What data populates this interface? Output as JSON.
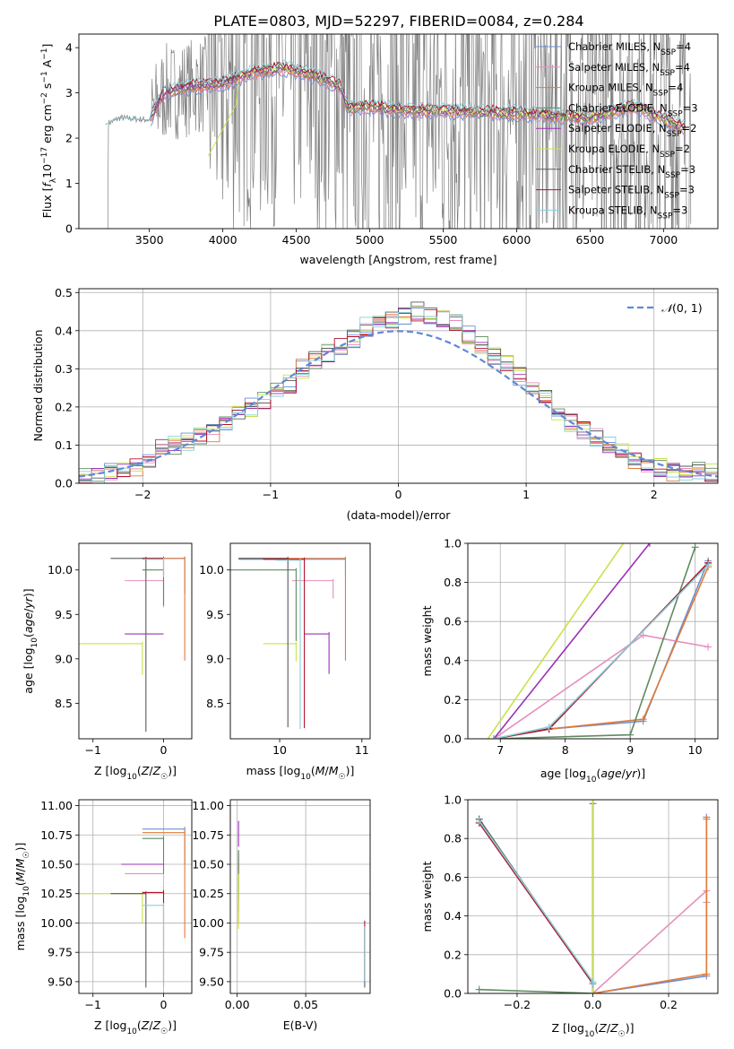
{
  "figure_title": "PLATE=0803, MJD=52297, FIBERID=0084, z=0.284",
  "series_colors": [
    "#6a8fd8",
    "#e58fbd",
    "#e07b39",
    "#5f8a60",
    "#9b32b5",
    "#c8e34a",
    "#5a5a5a",
    "#b3122a",
    "#86d0d8"
  ],
  "data_color": "#808080",
  "chart_data": [
    {
      "id": "spectrum",
      "type": "line",
      "xlabel": "wavelength [Angstrom, rest frame]",
      "ylabel": "Flux [f_λ 10^-17 erg cm^-2 s^-1 A^-1]",
      "xlim": [
        3020,
        7370
      ],
      "ylim": [
        0,
        4.3
      ],
      "xticks": [
        3500,
        4000,
        4500,
        5000,
        5500,
        6000,
        6500,
        7000
      ],
      "yticks": [
        0,
        1,
        2,
        3,
        4
      ],
      "grid": false,
      "legend_position": "top-right",
      "legend": [
        "Chabrier MILES, N_SSP=4",
        "Salpeter MILES, N_SSP=4",
        "Kroupa MILES, N_SSP=4",
        "Chabrier ELODIE, N_SSP=3",
        "Salpeter ELODIE, N_SSP=2",
        "Kroupa ELODIE, N_SSP=2",
        "Chabrier STELIB, N_SSP=3",
        "Salpeter STELIB, N_SSP=3",
        "Kroupa STELIB, N_SSP=3"
      ],
      "data_range": [
        3190,
        7190
      ],
      "model_continuum": {
        "x": [
          3200,
          3300,
          3500,
          3600,
          3800,
          4000,
          4200,
          4400,
          4600,
          4800,
          4850,
          5000,
          5200,
          5500,
          6000,
          6500,
          6800,
          7150
        ],
        "y": [
          2.3,
          2.45,
          2.4,
          3.0,
          3.15,
          3.2,
          3.45,
          3.55,
          3.4,
          3.15,
          2.65,
          2.7,
          2.62,
          2.6,
          2.55,
          2.45,
          2.7,
          2.2
        ]
      }
    },
    {
      "id": "residuals",
      "type": "line",
      "xlabel": "(data-model)/error",
      "ylabel": "Normed distribution",
      "xlim": [
        -2.5,
        2.5
      ],
      "ylim": [
        0,
        0.51
      ],
      "xticks": [
        -2,
        -1,
        0,
        1,
        2
      ],
      "yticks": [
        0.0,
        0.1,
        0.2,
        0.3,
        0.4,
        0.5
      ],
      "grid": true,
      "legend_position": "top-right",
      "legend": [
        "N(0,1)"
      ],
      "bin_width": 0.1,
      "hist_base": [
        0.02,
        0.02,
        0.03,
        0.03,
        0.04,
        0.06,
        0.09,
        0.1,
        0.11,
        0.12,
        0.13,
        0.16,
        0.18,
        0.2,
        0.22,
        0.24,
        0.26,
        0.3,
        0.32,
        0.34,
        0.36,
        0.38,
        0.41,
        0.42,
        0.43,
        0.44,
        0.45,
        0.44,
        0.43,
        0.42,
        0.39,
        0.36,
        0.33,
        0.31,
        0.28,
        0.25,
        0.22,
        0.19,
        0.16,
        0.14,
        0.12,
        0.1,
        0.08,
        0.06,
        0.05,
        0.04,
        0.03,
        0.03,
        0.03,
        0.03
      ]
    },
    {
      "id": "age_vs_Z",
      "type": "scatter",
      "xlabel": "Z [log10(Z/Z☉)]",
      "ylabel": "age [log10(age/yr)]",
      "xlim": [
        -1.2,
        0.4
      ],
      "ylim": [
        8.1,
        10.3
      ],
      "xticks": [
        -1,
        0
      ],
      "yticks": [
        8.5,
        9.0,
        9.5,
        10.0
      ],
      "grid": false,
      "points": [
        {
          "s": 0,
          "x": 0.3,
          "y": 10.13,
          "xerr": 0.6,
          "yerr": 0.4
        },
        {
          "s": 1,
          "x": 0.0,
          "y": 9.88,
          "xerr": 0.55,
          "yerr": 0.3
        },
        {
          "s": 2,
          "x": 0.3,
          "y": 10.13,
          "xerr": 0.6,
          "yerr": 1.15
        },
        {
          "s": 3,
          "x": 0.0,
          "y": 10.0,
          "xerr": 0.3,
          "yerr": 0.4
        },
        {
          "s": 4,
          "x": 0.0,
          "y": 9.28,
          "xerr": 0.55,
          "yerr": 0.0
        },
        {
          "s": 5,
          "x": -0.3,
          "y": 9.17,
          "xerr": 1.2,
          "yerr": 0.35
        },
        {
          "s": 6,
          "x": -0.25,
          "y": 10.13,
          "xerr": 0.5,
          "yerr": 1.95
        },
        {
          "s": 7,
          "x": 0.0,
          "y": 10.13,
          "xerr": 0.3,
          "yerr": 0.2
        },
        {
          "s": 8,
          "x": 0.0,
          "y": 10.12,
          "xerr": 0.3,
          "yerr": 0.2
        }
      ]
    },
    {
      "id": "age_vs_mass",
      "type": "scatter",
      "xlabel": "mass [log10(M/M☉)]",
      "ylabel": "",
      "xlim": [
        9.4,
        11.1
      ],
      "ylim": [
        8.1,
        10.3
      ],
      "xticks": [
        10,
        11
      ],
      "yticks": [
        8.5,
        9.0,
        9.5,
        10.0
      ],
      "grid": false,
      "points": [
        {
          "s": 0,
          "x": 10.8,
          "y": 10.12,
          "xerr": 1.3,
          "yerr": 0.2
        },
        {
          "s": 1,
          "x": 10.65,
          "y": 9.88,
          "xerr": 0.5,
          "yerr": 0.2
        },
        {
          "s": 2,
          "x": 10.8,
          "y": 10.13,
          "xerr": 1.3,
          "yerr": 1.15
        },
        {
          "s": 3,
          "x": 10.2,
          "y": 10.0,
          "xerr": 1.0,
          "yerr": 0.8
        },
        {
          "s": 4,
          "x": 10.6,
          "y": 9.28,
          "xerr": 0.3,
          "yerr": 0.45
        },
        {
          "s": 5,
          "x": 10.2,
          "y": 9.17,
          "xerr": 0.4,
          "yerr": 0.2
        },
        {
          "s": 6,
          "x": 10.1,
          "y": 10.13,
          "xerr": 0.6,
          "yerr": 1.9
        },
        {
          "s": 7,
          "x": 10.3,
          "y": 10.12,
          "xerr": 0.5,
          "yerr": 1.9
        },
        {
          "s": 8,
          "x": 10.25,
          "y": 10.11,
          "xerr": 0.3,
          "yerr": 1.9
        }
      ]
    },
    {
      "id": "weight_vs_age",
      "type": "line",
      "xlabel": "age [log10(age/yr)]",
      "ylabel": "mass weight",
      "xlim": [
        6.5,
        10.35
      ],
      "ylim": [
        0,
        1.0
      ],
      "xticks": [
        7,
        8,
        9,
        10
      ],
      "yticks": [
        0.0,
        0.2,
        0.4,
        0.6,
        0.8,
        1.0
      ],
      "grid": true,
      "series": [
        {
          "s": 0,
          "x": [
            6.9,
            7.75,
            9.2,
            10.2
          ],
          "y": [
            0.0,
            0.05,
            0.09,
            0.91
          ]
        },
        {
          "s": 1,
          "x": [
            6.9,
            9.2,
            10.2
          ],
          "y": [
            0.0,
            0.53,
            0.47
          ]
        },
        {
          "s": 2,
          "x": [
            6.9,
            7.75,
            9.2,
            10.2
          ],
          "y": [
            0.0,
            0.05,
            0.1,
            0.88
          ]
        },
        {
          "s": 3,
          "x": [
            6.9,
            9.0,
            10.0
          ],
          "y": [
            0.0,
            0.02,
            0.98
          ]
        },
        {
          "s": 4,
          "x": [
            6.9,
            9.3
          ],
          "y": [
            0.0,
            1.0
          ]
        },
        {
          "s": 5,
          "x": [
            6.6,
            9.0
          ],
          "y": [
            -0.1,
            1.05
          ]
        },
        {
          "s": 6,
          "x": [
            6.9,
            7.75,
            10.2
          ],
          "y": [
            0.0,
            0.05,
            0.9
          ]
        },
        {
          "s": 7,
          "x": [
            6.9,
            7.75,
            10.2
          ],
          "y": [
            0.0,
            0.05,
            0.9
          ]
        },
        {
          "s": 8,
          "x": [
            6.9,
            7.75,
            10.2
          ],
          "y": [
            0.0,
            0.06,
            0.89
          ]
        }
      ]
    },
    {
      "id": "mass_vs_Z",
      "type": "scatter",
      "xlabel": "Z [log10(Z/Z☉)]",
      "ylabel": "mass [log10(M/M☉)]",
      "xlim": [
        -1.2,
        0.4
      ],
      "ylim": [
        9.4,
        11.05
      ],
      "xticks": [
        -1,
        0
      ],
      "yticks": [
        9.5,
        9.75,
        10.0,
        10.25,
        10.5,
        10.75,
        11.0
      ],
      "grid": true,
      "points": [
        {
          "s": 0,
          "x": 0.3,
          "y": 10.8,
          "xerr": 0.6,
          "yerr": 0.3
        },
        {
          "s": 1,
          "x": 0.0,
          "y": 10.42,
          "xerr": 0.55,
          "yerr": 0.0
        },
        {
          "s": 2,
          "x": 0.3,
          "y": 10.77,
          "xerr": 0.6,
          "yerr": 0.9
        },
        {
          "s": 3,
          "x": 0.0,
          "y": 10.72,
          "xerr": 0.3,
          "yerr": 0.3
        },
        {
          "s": 4,
          "x": 0.0,
          "y": 10.5,
          "xerr": 0.6,
          "yerr": 0.0
        },
        {
          "s": 5,
          "x": -0.3,
          "y": 10.25,
          "xerr": 1.2,
          "yerr": 0.25
        },
        {
          "s": 6,
          "x": -0.25,
          "y": 10.25,
          "xerr": 0.5,
          "yerr": 0.8
        },
        {
          "s": 7,
          "x": 0.0,
          "y": 10.26,
          "xerr": 0.3,
          "yerr": 0.8
        },
        {
          "s": 8,
          "x": 0.0,
          "y": 10.15,
          "xerr": 0.3,
          "yerr": 0.7
        }
      ]
    },
    {
      "id": "mass_vs_ebv",
      "type": "scatter",
      "xlabel": "E(B-V)",
      "ylabel": "",
      "xlim": [
        -0.005,
        0.097
      ],
      "ylim": [
        9.4,
        11.05
      ],
      "xticks": [
        0.0,
        0.05
      ],
      "yticks": [
        9.5,
        9.75,
        10.0,
        10.25,
        10.5,
        10.75,
        11.0
      ],
      "grid": true,
      "points": [
        {
          "s": 0,
          "x": 0.001,
          "y": 10.55,
          "xerr": 0,
          "yerr": 0.45
        },
        {
          "s": 1,
          "x": 0.001,
          "y": 10.6,
          "xerr": 0,
          "yerr": 0.45
        },
        {
          "s": 2,
          "x": 0.001,
          "y": 10.5,
          "xerr": 0,
          "yerr": 0.5
        },
        {
          "s": 3,
          "x": 0.001,
          "y": 10.6,
          "xerr": 0,
          "yerr": 0.4
        },
        {
          "s": 4,
          "x": 0.001,
          "y": 10.85,
          "xerr": 0,
          "yerr": 0.2
        },
        {
          "s": 5,
          "x": 0.001,
          "y": 10.4,
          "xerr": 0,
          "yerr": 0.45
        },
        {
          "s": 6,
          "x": 0.093,
          "y": 9.95,
          "xerr": 0,
          "yerr": 0.5
        },
        {
          "s": 7,
          "x": 0.093,
          "y": 10.0,
          "xerr": 0,
          "yerr": 0.5
        },
        {
          "s": 8,
          "x": 0.093,
          "y": 9.95,
          "xerr": 0,
          "yerr": 0.45
        }
      ]
    },
    {
      "id": "weight_vs_Z",
      "type": "line",
      "xlabel": "Z [log10(Z/Z☉)]",
      "ylabel": "mass weight",
      "xlim": [
        -0.33,
        0.33
      ],
      "ylim": [
        0,
        1.0
      ],
      "xticks": [
        -0.2,
        0.0,
        0.2
      ],
      "yticks": [
        0.0,
        0.2,
        0.4,
        0.6,
        0.8,
        1.0
      ],
      "grid": true,
      "series": [
        {
          "s": 0,
          "x": [
            0.0,
            0.3,
            0.3
          ],
          "y": [
            0.0,
            0.09,
            0.91
          ]
        },
        {
          "s": 1,
          "x": [
            0.0,
            0.3,
            0.3
          ],
          "y": [
            0.0,
            0.53,
            0.47
          ]
        },
        {
          "s": 2,
          "x": [
            0.0,
            0.3,
            0.3
          ],
          "y": [
            0.0,
            0.1,
            0.9
          ]
        },
        {
          "s": 3,
          "x": [
            -0.3,
            0.0,
            0.0
          ],
          "y": [
            0.02,
            0.0,
            0.98
          ]
        },
        {
          "s": 4,
          "x": [
            0.0,
            0.0
          ],
          "y": [
            0.0,
            1.0
          ]
        },
        {
          "s": 5,
          "x": [
            0.0,
            0.0
          ],
          "y": [
            0.0,
            1.0
          ]
        },
        {
          "s": 6,
          "x": [
            -0.3,
            0.0,
            0.0
          ],
          "y": [
            0.9,
            0.05,
            0.05
          ]
        },
        {
          "s": 7,
          "x": [
            -0.3,
            0.0,
            0.0
          ],
          "y": [
            0.88,
            0.05,
            0.05
          ]
        },
        {
          "s": 8,
          "x": [
            -0.3,
            0.0,
            0.0
          ],
          "y": [
            0.89,
            0.06,
            0.05
          ]
        }
      ]
    }
  ]
}
